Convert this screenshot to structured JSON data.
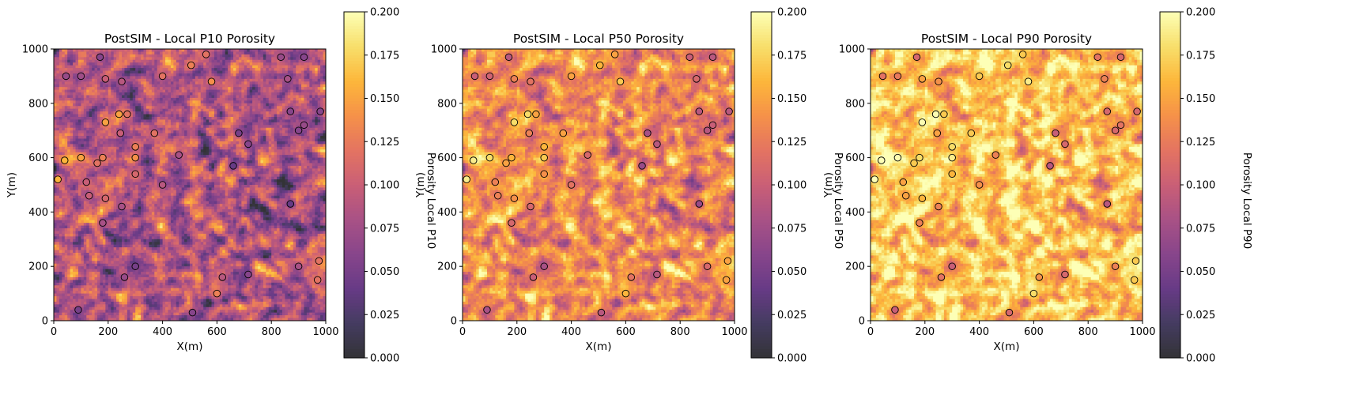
{
  "chart_data": [
    {
      "type": "heatmap",
      "title": "PostSIM - Local P10 Porosity",
      "xlabel": "X(m)",
      "ylabel": "Y(m)",
      "colorbar_label": "Porosity Local P10",
      "xlim": [
        0,
        1000
      ],
      "ylim": [
        0,
        1000
      ],
      "xticks": [
        "0",
        "200",
        "400",
        "600",
        "800",
        "1000"
      ],
      "yticks": [
        "0",
        "200",
        "400",
        "600",
        "800",
        "1000"
      ],
      "colorbar_range": [
        0.0,
        0.2
      ],
      "colorbar_ticks": [
        "0.000",
        "0.025",
        "0.050",
        "0.075",
        "0.100",
        "0.125",
        "0.150",
        "0.175",
        "0.200"
      ],
      "colormap": "inferno",
      "grid_mean": 0.085,
      "grid_spread": 0.035
    },
    {
      "type": "heatmap",
      "title": "PostSIM - Local P50 Porosity",
      "xlabel": "X(m)",
      "ylabel": "Y(m)",
      "colorbar_label": "Porosity Local P50",
      "xlim": [
        0,
        1000
      ],
      "ylim": [
        0,
        1000
      ],
      "xticks": [
        "0",
        "200",
        "400",
        "600",
        "800",
        "1000"
      ],
      "yticks": [
        "0",
        "200",
        "400",
        "600",
        "800",
        "1000"
      ],
      "colorbar_range": [
        0.0,
        0.2
      ],
      "colorbar_ticks": [
        "0.000",
        "0.025",
        "0.050",
        "0.075",
        "0.100",
        "0.125",
        "0.150",
        "0.175",
        "0.200"
      ],
      "colormap": "inferno",
      "grid_mean": 0.135,
      "grid_spread": 0.03
    },
    {
      "type": "heatmap",
      "title": "PostSIM - Local P90 Porosity",
      "xlabel": "X(m)",
      "ylabel": "Y(m)",
      "colorbar_label": "Porosity Local P90",
      "xlim": [
        0,
        1000
      ],
      "ylim": [
        0,
        1000
      ],
      "xticks": [
        "0",
        "200",
        "400",
        "600",
        "800",
        "1000"
      ],
      "yticks": [
        "0",
        "200",
        "400",
        "600",
        "800",
        "1000"
      ],
      "colorbar_range": [
        0.0,
        0.2
      ],
      "colorbar_ticks": [
        "0.000",
        "0.025",
        "0.050",
        "0.075",
        "0.100",
        "0.125",
        "0.150",
        "0.175",
        "0.200"
      ],
      "colormap": "inferno",
      "grid_mean": 0.168,
      "grid_spread": 0.028
    }
  ],
  "wells": [
    {
      "x": 45,
      "y": 900,
      "por": 0.09
    },
    {
      "x": 100,
      "y": 900,
      "por": 0.095
    },
    {
      "x": 170,
      "y": 970,
      "por": 0.08
    },
    {
      "x": 190,
      "y": 890,
      "por": 0.12
    },
    {
      "x": 250,
      "y": 880,
      "por": 0.11
    },
    {
      "x": 400,
      "y": 900,
      "por": 0.14
    },
    {
      "x": 505,
      "y": 940,
      "por": 0.15
    },
    {
      "x": 560,
      "y": 980,
      "por": 0.14
    },
    {
      "x": 580,
      "y": 880,
      "por": 0.16
    },
    {
      "x": 835,
      "y": 970,
      "por": 0.09
    },
    {
      "x": 920,
      "y": 970,
      "por": 0.08
    },
    {
      "x": 860,
      "y": 890,
      "por": 0.1
    },
    {
      "x": 240,
      "y": 760,
      "por": 0.17
    },
    {
      "x": 270,
      "y": 760,
      "por": 0.14
    },
    {
      "x": 190,
      "y": 730,
      "por": 0.17
    },
    {
      "x": 370,
      "y": 690,
      "por": 0.14
    },
    {
      "x": 245,
      "y": 690,
      "por": 0.12
    },
    {
      "x": 680,
      "y": 690,
      "por": 0.07
    },
    {
      "x": 870,
      "y": 770,
      "por": 0.08
    },
    {
      "x": 980,
      "y": 770,
      "por": 0.08
    },
    {
      "x": 920,
      "y": 720,
      "por": 0.09
    },
    {
      "x": 900,
      "y": 700,
      "por": 0.08
    },
    {
      "x": 715,
      "y": 650,
      "por": 0.08
    },
    {
      "x": 300,
      "y": 640,
      "por": 0.15
    },
    {
      "x": 460,
      "y": 610,
      "por": 0.1
    },
    {
      "x": 40,
      "y": 590,
      "por": 0.18
    },
    {
      "x": 100,
      "y": 600,
      "por": 0.17
    },
    {
      "x": 180,
      "y": 600,
      "por": 0.15
    },
    {
      "x": 300,
      "y": 600,
      "por": 0.16
    },
    {
      "x": 160,
      "y": 580,
      "por": 0.14
    },
    {
      "x": 660,
      "y": 570,
      "por": 0.06
    },
    {
      "x": 300,
      "y": 540,
      "por": 0.13
    },
    {
      "x": 15,
      "y": 520,
      "por": 0.18
    },
    {
      "x": 120,
      "y": 510,
      "por": 0.12
    },
    {
      "x": 400,
      "y": 500,
      "por": 0.11
    },
    {
      "x": 130,
      "y": 460,
      "por": 0.12
    },
    {
      "x": 190,
      "y": 450,
      "por": 0.13
    },
    {
      "x": 870,
      "y": 430,
      "por": 0.06
    },
    {
      "x": 250,
      "y": 420,
      "por": 0.1
    },
    {
      "x": 180,
      "y": 360,
      "por": 0.1
    },
    {
      "x": 975,
      "y": 220,
      "por": 0.14
    },
    {
      "x": 900,
      "y": 200,
      "por": 0.1
    },
    {
      "x": 300,
      "y": 200,
      "por": 0.07
    },
    {
      "x": 715,
      "y": 170,
      "por": 0.08
    },
    {
      "x": 260,
      "y": 160,
      "por": 0.09
    },
    {
      "x": 620,
      "y": 160,
      "por": 0.11
    },
    {
      "x": 970,
      "y": 150,
      "por": 0.14
    },
    {
      "x": 600,
      "y": 100,
      "por": 0.15
    },
    {
      "x": 90,
      "y": 40,
      "por": 0.07
    },
    {
      "x": 510,
      "y": 30,
      "por": 0.08
    }
  ]
}
